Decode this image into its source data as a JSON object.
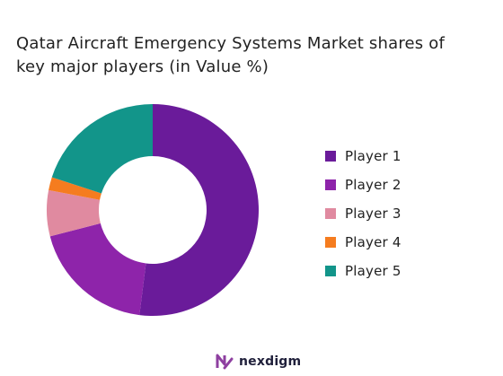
{
  "chart_data": {
    "type": "pie",
    "title_lines": [
      "Qatar Aircraft Emergency Systems Market shares of",
      "key major players (in Value %)"
    ],
    "categories": [
      "Player 1",
      "Player 2",
      "Player 3",
      "Player 4",
      "Player 5"
    ],
    "values": [
      52,
      19,
      7,
      2,
      20
    ],
    "colors": [
      "#6a1b9a",
      "#8e24aa",
      "#e08aa0",
      "#f57c1f",
      "#12958a"
    ],
    "style": "donut",
    "start_angle_deg": 0,
    "direction": "clockwise",
    "legend_position": "right"
  },
  "brand": {
    "name": "nexdigm",
    "color": "#8e3fa0"
  }
}
